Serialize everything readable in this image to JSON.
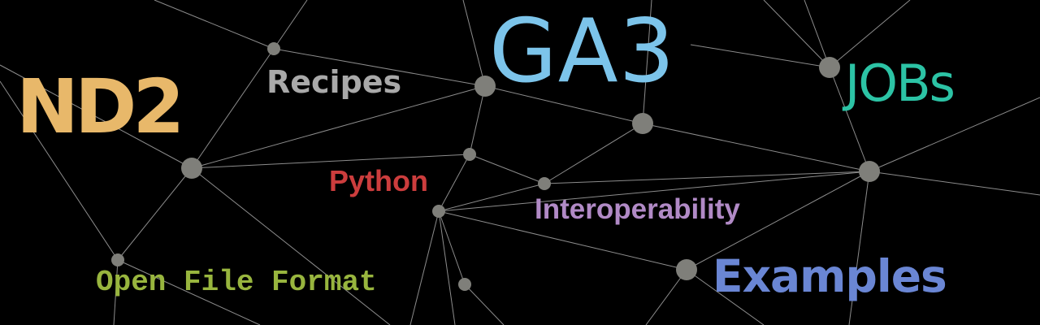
{
  "banner": {
    "words": {
      "nd2": {
        "text": "ND2",
        "color": "#e8b86a"
      },
      "recipes": {
        "text": "Recipes",
        "color": "#a9a9a9"
      },
      "ga3": {
        "text": "GA3",
        "color": "#7cc4ea"
      },
      "jobs": {
        "text": "JOBs",
        "color": "#2cc3a5"
      },
      "python": {
        "text": "Python",
        "color": "#cc3d3d"
      },
      "interoperability": {
        "text": "Interoperability",
        "color": "#b18ac6"
      },
      "open_file_format": {
        "text": "Open File Format",
        "color": "#98b53e"
      },
      "examples": {
        "text": "Examples",
        "color": "#6a86d4"
      }
    },
    "network": {
      "line_color": "#8c8c8c",
      "node_color": "#7f7f7a"
    }
  }
}
